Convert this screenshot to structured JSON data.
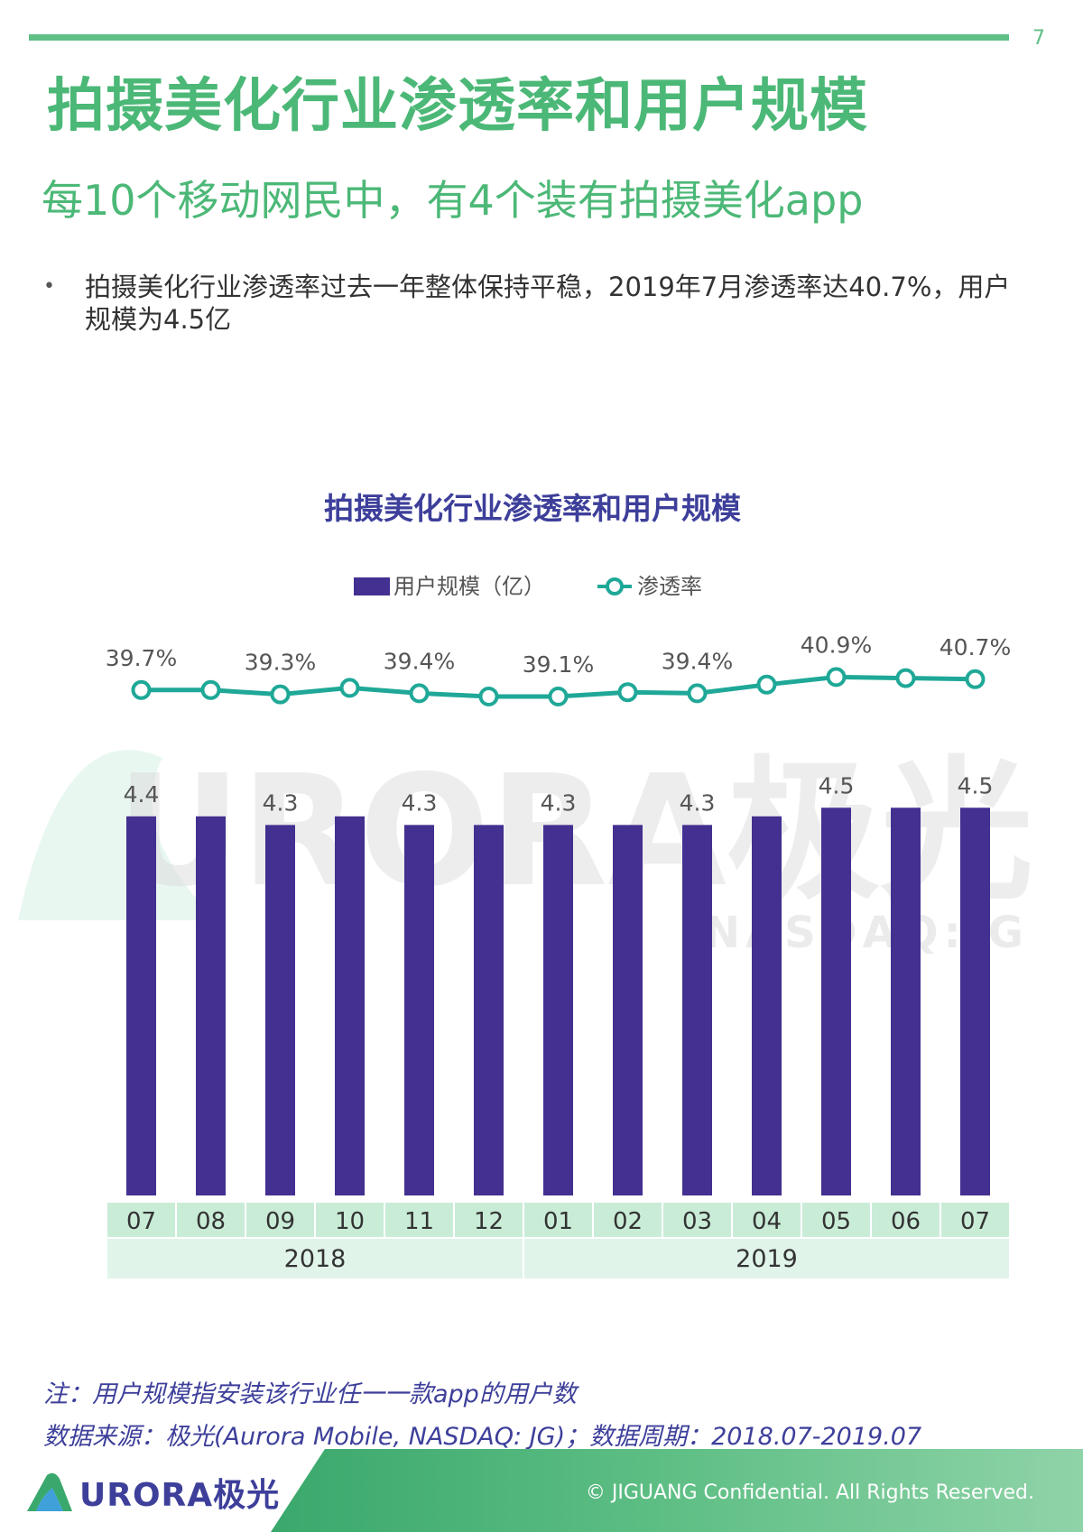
{
  "page": {
    "number": "7",
    "title": "拍摄美化行业渗透率和用户规模",
    "subtitle": "每10个移动网民中，有4个装有拍摄美化app",
    "bullet": "拍摄美化行业渗透率过去一年整体保持平稳，2019年7月渗透率达40.7%，用户规模为4.5亿",
    "note": "注：用户规模指安装该行业任一一款app的用户数",
    "source": "数据来源：极光(Aurora Mobile, NASDAQ: JG)；数据周期：2018.07-2019.07",
    "logo": "URORA极光",
    "copyright": "© JIGUANG Confidential. All Rights Reserved.",
    "watermark": "URORA极光",
    "watermark_sub": "NASDAQ:JG"
  },
  "colors": {
    "green": "#4cb877",
    "bar": "#433090",
    "line": "#1fa897",
    "title_purple": "#3d3f9a",
    "axis_cell": "#c9ecd7",
    "year_cell": "#e1f4ea"
  },
  "chart_data": {
    "type": "bar",
    "title": "拍摄美化行业渗透率和用户规模",
    "legend_position": "top-center",
    "categories": [
      "07",
      "08",
      "09",
      "10",
      "11",
      "12",
      "01",
      "02",
      "03",
      "04",
      "05",
      "06",
      "07"
    ],
    "groups": [
      {
        "label": "2018",
        "start": 0,
        "end": 5
      },
      {
        "label": "2019",
        "start": 6,
        "end": 12
      }
    ],
    "series": [
      {
        "name": "用户规模（亿）",
        "type": "bar",
        "values": [
          4.4,
          4.4,
          4.3,
          4.4,
          4.3,
          4.3,
          4.3,
          4.3,
          4.3,
          4.4,
          4.5,
          4.5,
          4.5
        ],
        "labels": [
          "4.4",
          "",
          "4.3",
          "",
          "4.3",
          "",
          "4.3",
          "",
          "4.3",
          "",
          "4.5",
          "",
          "4.5"
        ]
      },
      {
        "name": "渗透率",
        "type": "line",
        "values": [
          39.7,
          39.7,
          39.3,
          39.9,
          39.4,
          39.1,
          39.1,
          39.5,
          39.4,
          40.2,
          40.9,
          40.8,
          40.7
        ],
        "labels": [
          "39.7%",
          "",
          "39.3%",
          "",
          "39.4%",
          "",
          "39.1%",
          "",
          "39.4%",
          "",
          "40.9%",
          "",
          "40.7%"
        ]
      }
    ],
    "grid": false
  }
}
